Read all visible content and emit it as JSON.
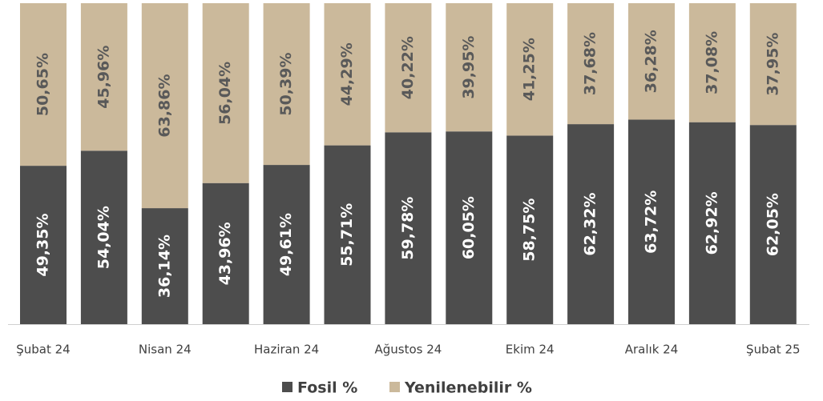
{
  "chart_data": {
    "type": "stacked_bar",
    "categories": [
      "Şubat 24",
      null,
      "Nisan 24",
      null,
      "Haziran 24",
      null,
      "Ağustos 24",
      null,
      "Ekim 24",
      null,
      "Aralık 24",
      null,
      "Şubat 25"
    ],
    "series": [
      {
        "name": "Fosil %",
        "color": "#4d4d4d",
        "label_color": "#ffffff",
        "values": [
          49.35,
          54.04,
          36.14,
          43.96,
          49.61,
          55.71,
          59.78,
          60.05,
          58.75,
          62.32,
          63.72,
          62.92,
          62.05
        ],
        "value_labels": [
          "49,35%",
          "54,04%",
          "36,14%",
          "43,96%",
          "49,61%",
          "55,71%",
          "59,78%",
          "60,05%",
          "58,75%",
          "62,32%",
          "63,72%",
          "62,92%",
          "62,05%"
        ]
      },
      {
        "name": "Yenilenebilir %",
        "color": "#cbb99b",
        "label_color": "#595959",
        "values": [
          50.65,
          45.96,
          63.86,
          56.04,
          50.39,
          44.29,
          40.22,
          39.95,
          41.25,
          37.68,
          36.28,
          37.08,
          37.95
        ],
        "value_labels": [
          "50,65%",
          "45,96%",
          "63,86%",
          "56,04%",
          "50,39%",
          "44,29%",
          "40,22%",
          "39,95%",
          "41,25%",
          "37,68%",
          "36,28%",
          "37,08%",
          "37,95%"
        ]
      }
    ],
    "ylim": [
      0,
      100
    ],
    "legend": "bottom"
  }
}
